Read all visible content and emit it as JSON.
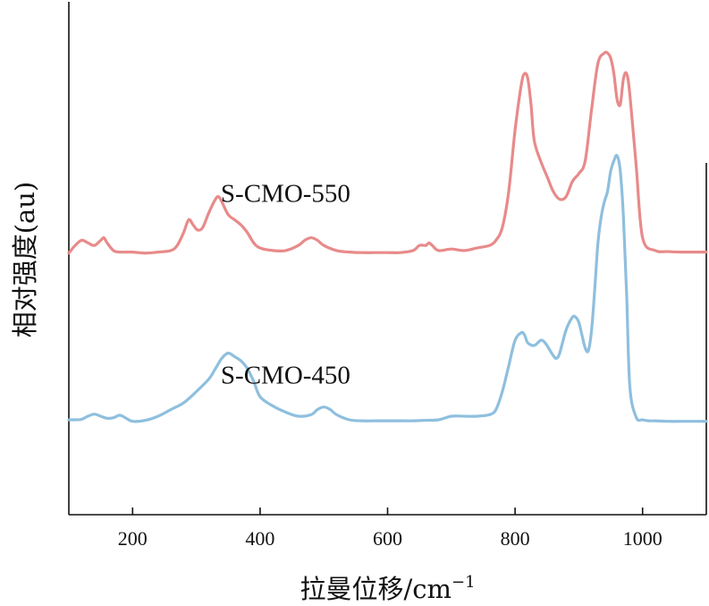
{
  "chart_data": {
    "type": "line",
    "title": "",
    "xlabel": "拉曼位移/cm⁻¹",
    "xlabel_main": "拉曼位移/cm",
    "xlabel_sup": "−1",
    "ylabel": "相对强度(au)",
    "xlim": [
      100,
      1100
    ],
    "ylim": [
      0,
      100
    ],
    "grid": false,
    "legend": "none",
    "x_ticks": [
      200,
      400,
      600,
      800,
      1000
    ],
    "x_tick_labels": [
      "200",
      "400",
      "600",
      "800",
      "1000"
    ],
    "series": [
      {
        "name": "S-CMO-550",
        "color": "#e88a8a",
        "baseline": 51,
        "label_at": [
          440,
          61
        ],
        "x": [
          100,
          110,
          120,
          130,
          140,
          150,
          155,
          160,
          170,
          180,
          200,
          220,
          240,
          260,
          270,
          280,
          288,
          295,
          302,
          310,
          320,
          330,
          335,
          340,
          350,
          360,
          370,
          380,
          390,
          400,
          420,
          440,
          460,
          470,
          480,
          490,
          500,
          520,
          540,
          560,
          580,
          600,
          620,
          640,
          650,
          660,
          665,
          670,
          680,
          700,
          720,
          740,
          760,
          770,
          780,
          790,
          800,
          810,
          815,
          820,
          825,
          830,
          840,
          850,
          860,
          870,
          880,
          890,
          900,
          910,
          920,
          930,
          940,
          945,
          950,
          955,
          960,
          965,
          970,
          975,
          980,
          990,
          1000,
          1020,
          1040,
          1060,
          1080,
          1100
        ],
        "y": [
          51,
          52.5,
          53.5,
          53,
          52.5,
          53.5,
          54,
          53,
          51.5,
          51.2,
          51.2,
          51,
          51.2,
          51.5,
          52.5,
          55,
          57.5,
          56.5,
          55.5,
          56,
          59,
          61.5,
          62,
          61,
          58.5,
          57.5,
          56.5,
          55,
          53,
          52,
          51.5,
          51.5,
          52.5,
          53.5,
          54,
          53.5,
          52.5,
          51.5,
          51.2,
          51.1,
          51.1,
          51.1,
          51.1,
          51.5,
          52.5,
          52.5,
          53,
          52.5,
          51.5,
          51.8,
          51.5,
          52,
          52.5,
          53.5,
          56,
          63,
          75,
          84,
          86,
          85,
          80,
          73,
          69,
          66,
          63,
          61.5,
          62,
          65,
          66.5,
          69,
          79,
          88,
          90,
          90,
          89,
          86,
          81,
          80,
          85,
          86,
          82,
          68,
          54,
          51.5,
          51.3,
          51.2,
          51.2,
          51.2
        ]
      },
      {
        "name": "S-CMO-450",
        "color": "#8ebfde",
        "baseline": 18,
        "label_at": [
          440,
          25.6
        ],
        "x": [
          100,
          110,
          120,
          130,
          140,
          150,
          160,
          170,
          180,
          190,
          200,
          220,
          240,
          260,
          280,
          300,
          320,
          330,
          340,
          350,
          360,
          370,
          380,
          390,
          400,
          420,
          440,
          460,
          480,
          490,
          500,
          510,
          520,
          540,
          560,
          580,
          600,
          620,
          640,
          660,
          680,
          700,
          720,
          740,
          760,
          770,
          780,
          790,
          800,
          810,
          815,
          820,
          830,
          840,
          845,
          850,
          860,
          865,
          870,
          880,
          890,
          895,
          900,
          905,
          910,
          915,
          920,
          925,
          930,
          935,
          940,
          945,
          950,
          955,
          960,
          965,
          970,
          975,
          980,
          990,
          1000,
          1010,
          1020,
          1040,
          1060,
          1080,
          1100
        ],
        "y": [
          18.5,
          18.5,
          18.6,
          19.2,
          19.6,
          19.2,
          18.8,
          18.9,
          19.4,
          18.8,
          18.2,
          18.4,
          19.2,
          20.5,
          21.8,
          24,
          26.5,
          28.5,
          30.5,
          31.5,
          30.8,
          30,
          28.5,
          26,
          23,
          21.2,
          20,
          19.2,
          19.5,
          20.5,
          21,
          20.5,
          19.5,
          18.5,
          18.3,
          18.3,
          18.3,
          18.3,
          18.3,
          18.4,
          18.5,
          19.2,
          19.2,
          19.2,
          19.5,
          20.5,
          24,
          29,
          34,
          35.5,
          35,
          33.5,
          33,
          34,
          33.8,
          33,
          31,
          30.5,
          31.5,
          36,
          38.5,
          38.5,
          37.5,
          35,
          32.5,
          32,
          36,
          44,
          53,
          58,
          61,
          63,
          67,
          69,
          70,
          67,
          58,
          43,
          25,
          19,
          18.5,
          18.3,
          18.3,
          18.2,
          18.2,
          18.2,
          18.2
        ]
      }
    ]
  }
}
